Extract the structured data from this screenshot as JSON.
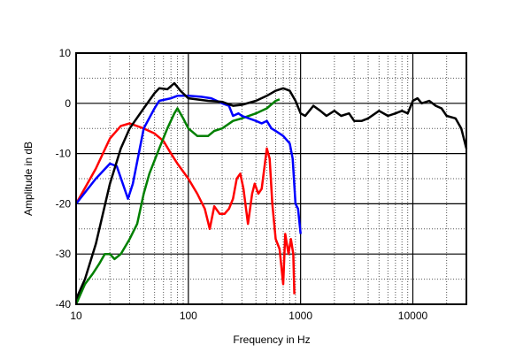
{
  "chart_data": {
    "type": "line",
    "title": "",
    "xlabel": "Frequency in Hz",
    "ylabel": "Amplitude in dB",
    "xscale": "log",
    "xlim": [
      10,
      30000
    ],
    "ylim": [
      -40,
      10
    ],
    "grid": true,
    "xticks": [
      10,
      100,
      1000,
      10000
    ],
    "xtick_labels": [
      "10",
      "100",
      "1000",
      "10000"
    ],
    "yticks": [
      10,
      0,
      -10,
      -20,
      -30,
      -40
    ],
    "ytick_labels": [
      "10",
      "0",
      "-10",
      "-20",
      "-30",
      "-40"
    ],
    "series": [
      {
        "color": "#ff0000",
        "points": [
          [
            10,
            -20
          ],
          [
            15,
            -13
          ],
          [
            20,
            -7
          ],
          [
            25,
            -4.5
          ],
          [
            30,
            -4
          ],
          [
            40,
            -5
          ],
          [
            50,
            -6
          ],
          [
            60,
            -7.5
          ],
          [
            70,
            -10
          ],
          [
            80,
            -12
          ],
          [
            100,
            -15
          ],
          [
            120,
            -18
          ],
          [
            140,
            -21
          ],
          [
            155,
            -25
          ],
          [
            170,
            -20.5
          ],
          [
            190,
            -22
          ],
          [
            210,
            -22
          ],
          [
            230,
            -21
          ],
          [
            250,
            -19
          ],
          [
            270,
            -15
          ],
          [
            290,
            -14
          ],
          [
            310,
            -17
          ],
          [
            340,
            -24
          ],
          [
            370,
            -18
          ],
          [
            390,
            -16
          ],
          [
            420,
            -18
          ],
          [
            450,
            -17
          ],
          [
            500,
            -9
          ],
          [
            530,
            -11
          ],
          [
            560,
            -20
          ],
          [
            600,
            -27
          ],
          [
            650,
            -29
          ],
          [
            700,
            -36
          ],
          [
            730,
            -26
          ],
          [
            780,
            -30
          ],
          [
            820,
            -27
          ],
          [
            860,
            -30
          ],
          [
            880,
            -38
          ]
        ]
      },
      {
        "color": "#008000",
        "points": [
          [
            10,
            -40
          ],
          [
            12,
            -36
          ],
          [
            14,
            -34
          ],
          [
            16,
            -32
          ],
          [
            18,
            -30
          ],
          [
            20,
            -30
          ],
          [
            22,
            -31
          ],
          [
            25,
            -30
          ],
          [
            30,
            -27
          ],
          [
            35,
            -24
          ],
          [
            40,
            -18
          ],
          [
            45,
            -14
          ],
          [
            55,
            -9
          ],
          [
            65,
            -5
          ],
          [
            75,
            -2
          ],
          [
            80,
            -1
          ],
          [
            90,
            -3
          ],
          [
            100,
            -5
          ],
          [
            120,
            -6.5
          ],
          [
            150,
            -6.5
          ],
          [
            170,
            -5.5
          ],
          [
            200,
            -5
          ],
          [
            250,
            -3.5
          ],
          [
            300,
            -3
          ],
          [
            400,
            -2
          ],
          [
            500,
            -1
          ],
          [
            600,
            0.5
          ],
          [
            650,
            0.8
          ]
        ]
      },
      {
        "color": "#0000ff",
        "points": [
          [
            10,
            -20
          ],
          [
            15,
            -15
          ],
          [
            20,
            -12
          ],
          [
            23,
            -12.5
          ],
          [
            27,
            -17
          ],
          [
            29,
            -19
          ],
          [
            32,
            -16
          ],
          [
            40,
            -5
          ],
          [
            50,
            -1
          ],
          [
            55,
            0.5
          ],
          [
            70,
            1
          ],
          [
            80,
            1.5
          ],
          [
            100,
            1.5
          ],
          [
            130,
            1.3
          ],
          [
            160,
            1
          ],
          [
            200,
            0
          ],
          [
            230,
            -0.5
          ],
          [
            250,
            -2.5
          ],
          [
            280,
            -2
          ],
          [
            300,
            -2.5
          ],
          [
            400,
            -3.5
          ],
          [
            450,
            -4
          ],
          [
            500,
            -3.5
          ],
          [
            550,
            -5
          ],
          [
            600,
            -5.5
          ],
          [
            700,
            -6.5
          ],
          [
            800,
            -8
          ],
          [
            850,
            -11
          ],
          [
            900,
            -20
          ],
          [
            950,
            -21
          ],
          [
            1000,
            -26
          ]
        ]
      },
      {
        "color": "#000000",
        "points": [
          [
            10,
            -39
          ],
          [
            12,
            -35
          ],
          [
            15,
            -28
          ],
          [
            20,
            -16
          ],
          [
            25,
            -9
          ],
          [
            30,
            -5
          ],
          [
            40,
            -1
          ],
          [
            50,
            2
          ],
          [
            55,
            3
          ],
          [
            65,
            2.8
          ],
          [
            75,
            4
          ],
          [
            85,
            2.5
          ],
          [
            100,
            1
          ],
          [
            150,
            0.5
          ],
          [
            200,
            0.3
          ],
          [
            250,
            -0.5
          ],
          [
            300,
            -0.3
          ],
          [
            400,
            0.5
          ],
          [
            500,
            1.5
          ],
          [
            600,
            2.5
          ],
          [
            700,
            3
          ],
          [
            800,
            2.5
          ],
          [
            900,
            0.5
          ],
          [
            1000,
            -2
          ],
          [
            1100,
            -2.5
          ],
          [
            1300,
            -0.5
          ],
          [
            1500,
            -1.5
          ],
          [
            1700,
            -2.5
          ],
          [
            2000,
            -1.5
          ],
          [
            2300,
            -2.5
          ],
          [
            2700,
            -2
          ],
          [
            3000,
            -3.5
          ],
          [
            3500,
            -3.5
          ],
          [
            4000,
            -3
          ],
          [
            5000,
            -1.5
          ],
          [
            6000,
            -2.5
          ],
          [
            7000,
            -2
          ],
          [
            8000,
            -1.5
          ],
          [
            9000,
            -2
          ],
          [
            10000,
            0.5
          ],
          [
            11000,
            1
          ],
          [
            12000,
            0
          ],
          [
            14000,
            0.5
          ],
          [
            16000,
            -0.5
          ],
          [
            18000,
            -1
          ],
          [
            20000,
            -2.5
          ],
          [
            24000,
            -3
          ],
          [
            27000,
            -5
          ],
          [
            30000,
            -9
          ]
        ]
      }
    ]
  }
}
